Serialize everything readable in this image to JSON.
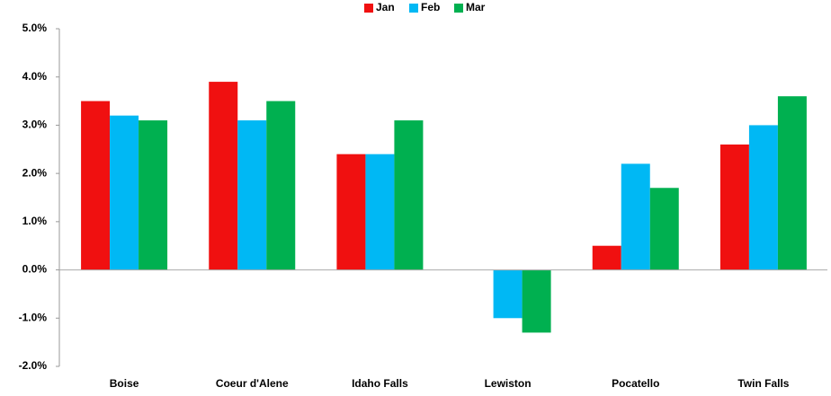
{
  "chart_data": {
    "type": "bar",
    "categories": [
      "Boise",
      "Coeur d'Alene",
      "Idaho Falls",
      "Lewiston",
      "Pocatello",
      "Twin Falls"
    ],
    "series": [
      {
        "name": "Jan",
        "color": "#f01010",
        "values": [
          3.5,
          3.9,
          2.4,
          0,
          0.5,
          2.6
        ]
      },
      {
        "name": "Feb",
        "color": "#00b8f4",
        "values": [
          3.2,
          3.1,
          2.4,
          -1.0,
          2.2,
          3.0
        ]
      },
      {
        "name": "Mar",
        "color": "#00b050",
        "values": [
          3.1,
          3.5,
          3.1,
          -1.3,
          1.7,
          3.6
        ]
      }
    ],
    "ylim": [
      -2,
      5
    ],
    "yticks": [
      {
        "value": -2,
        "label": "-2.0%"
      },
      {
        "value": -1,
        "label": "-1.0%"
      },
      {
        "value": 0,
        "label": "0.0%"
      },
      {
        "value": 1,
        "label": "1.0%"
      },
      {
        "value": 2,
        "label": "2.0%"
      },
      {
        "value": 3,
        "label": "3.0%"
      },
      {
        "value": 4,
        "label": "4.0%"
      },
      {
        "value": 5,
        "label": "5.0%"
      }
    ],
    "grid": false,
    "legend": "top"
  }
}
